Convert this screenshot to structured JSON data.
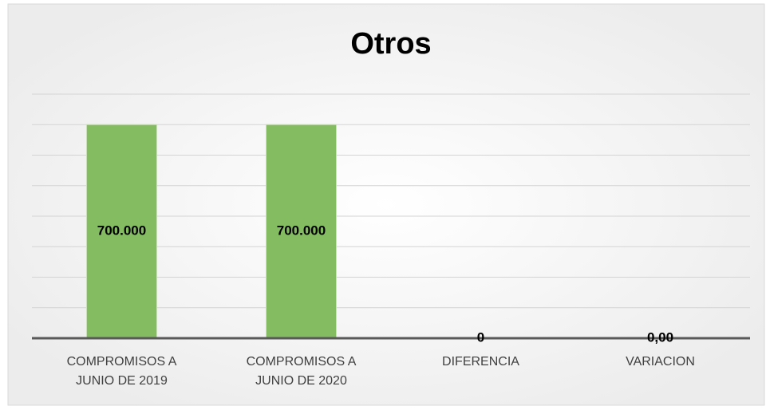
{
  "chart_data": {
    "type": "bar",
    "title": "Otros",
    "categories": [
      "COMPROMISOS A JUNIO DE  2019",
      "COMPROMISOS A JUNIO DE 2020",
      "DIFERENCIA",
      "VARIACION"
    ],
    "values": [
      700000,
      700000,
      0,
      0
    ],
    "value_labels": [
      "700.000",
      "700.000",
      "0",
      "0,00"
    ],
    "color": "#84bc62",
    "ylim": [
      0,
      800000
    ],
    "yticks": [
      0,
      100000,
      200000,
      300000,
      400000,
      500000,
      600000,
      700000,
      800000
    ],
    "grid": true
  }
}
